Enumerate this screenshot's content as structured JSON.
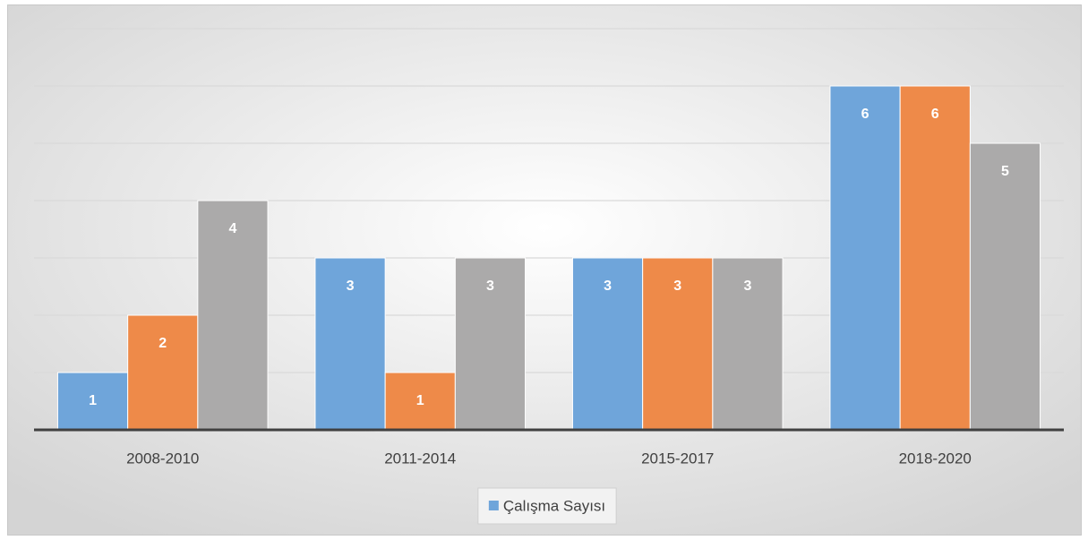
{
  "chart_data": {
    "type": "bar",
    "categories": [
      "2008-2010",
      "2011-2014",
      "2015-2017",
      "2018-2020"
    ],
    "series": [
      {
        "name": "Çalışma Sayısı",
        "color": "#6fa5da",
        "values": [
          1,
          3,
          3,
          6
        ]
      },
      {
        "color": "#ee8a49",
        "values": [
          2,
          1,
          3,
          6
        ]
      },
      {
        "color": "#abaaaa",
        "values": [
          4,
          3,
          3,
          5
        ]
      }
    ],
    "ylim": [
      0,
      7
    ],
    "yticks": [
      0,
      1,
      2,
      3,
      4,
      5,
      6,
      7
    ],
    "grid": true,
    "legend": "bottom"
  }
}
